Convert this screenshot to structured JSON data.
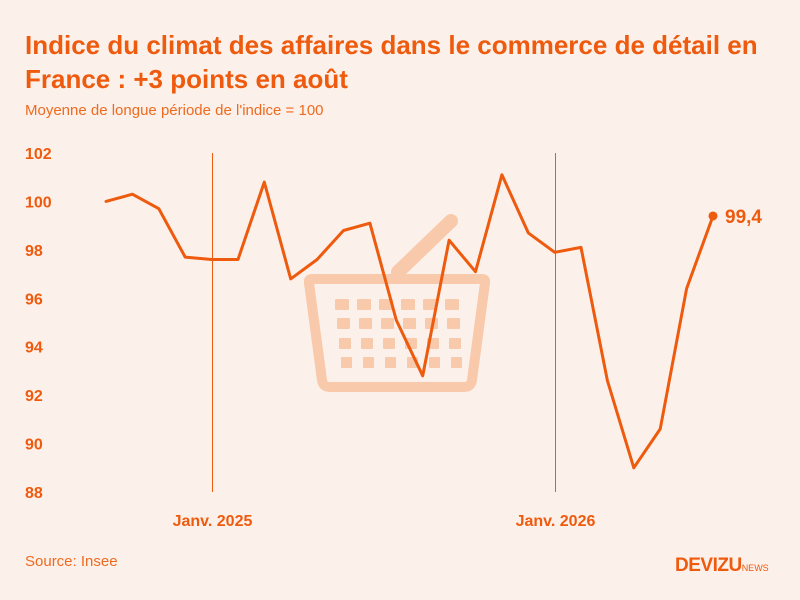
{
  "title": "Indice du climat des affaires dans le commerce de détail en France : +3 points en août",
  "subtitle": "Moyenne de longue période de l'indice = 100",
  "source": "Source: Insee",
  "brand": {
    "name": "DEVIZU",
    "suffix": "NEWS"
  },
  "colors": {
    "accent": "#ee5a0e",
    "background": "#fcf1ea",
    "basket": "#f8c9ab"
  },
  "icon": "shopping-basket-icon",
  "chart_data": {
    "type": "line",
    "title": "Indice du climat des affaires dans le commerce de détail en France : +3 points en août",
    "subtitle": "Moyenne de longue période de l'indice = 100",
    "xlabel": "",
    "ylabel": "",
    "ylim": [
      88,
      102
    ],
    "yticks": [
      88,
      90,
      92,
      94,
      96,
      98,
      100,
      102
    ],
    "grid": false,
    "year_markers": [
      {
        "label": "Janv. 2025",
        "index": 4
      },
      {
        "label": "Janv. 2026",
        "index": 17
      }
    ],
    "series": [
      {
        "name": "",
        "values": [
          100.0,
          100.3,
          99.7,
          97.7,
          97.6,
          97.6,
          100.8,
          96.8,
          97.6,
          98.8,
          99.1,
          95.1,
          92.8,
          98.4,
          97.1,
          101.1,
          98.7,
          97.9,
          98.1,
          92.6,
          89.0,
          90.6,
          96.4,
          99.4
        ]
      }
    ],
    "end_label": "99,4"
  }
}
